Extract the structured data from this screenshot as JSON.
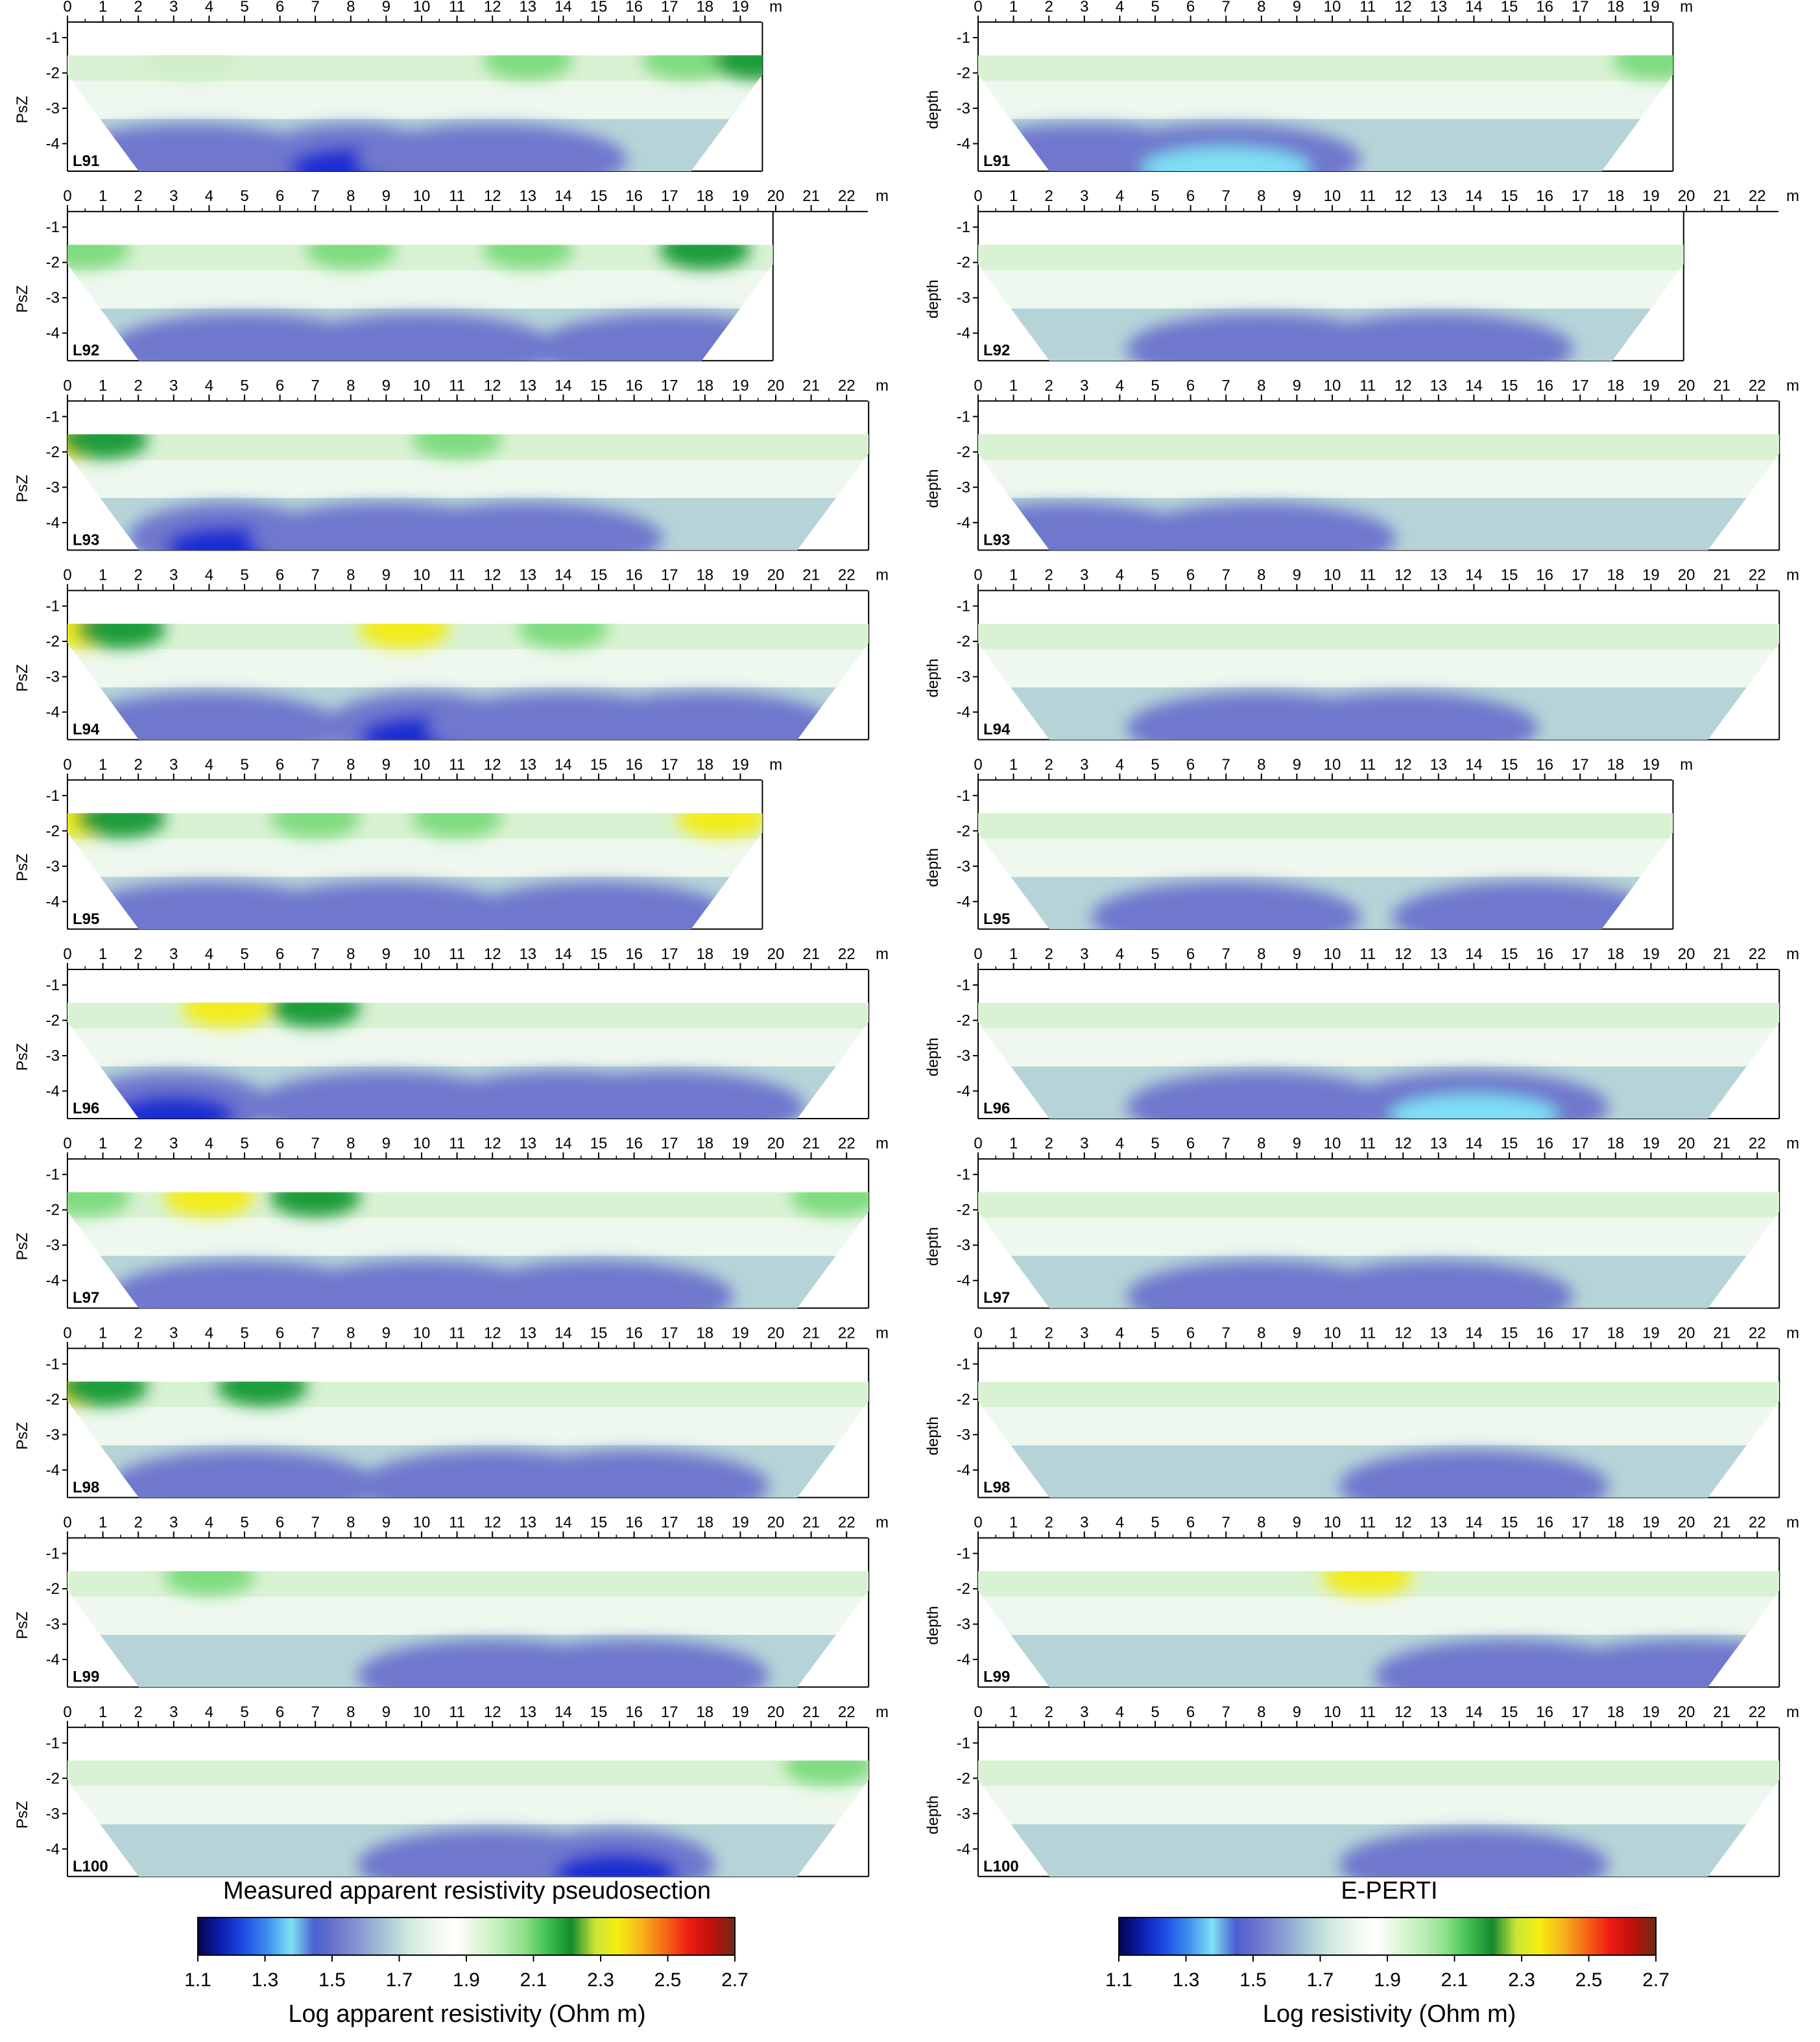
{
  "figure": {
    "unit_label": "m",
    "left_column": {
      "y_axis_label": "PsZ",
      "caption": "Measured apparent resistivity pseudosection",
      "colorbar": {
        "title": "Log apparent resistivity (Ohm m)",
        "ticks": [
          "1.1",
          "1.3",
          "1.5",
          "1.7",
          "1.9",
          "2.1",
          "2.3",
          "2.5",
          "2.7"
        ]
      }
    },
    "right_column": {
      "y_axis_label": "depth",
      "caption": "E-PERTI",
      "colorbar": {
        "title": "Log resistivity (Ohm m)",
        "ticks": [
          "1.1",
          "1.3",
          "1.5",
          "1.7",
          "1.9",
          "2.1",
          "2.3",
          "2.5",
          "2.7"
        ]
      }
    },
    "depth_ticks": [
      "-1",
      "-2",
      "-3",
      "-4"
    ],
    "colormap": [
      "#05054e",
      "#0b1fb0",
      "#1d4fe6",
      "#3f8ff0",
      "#7fe1f5",
      "#4b5fd0",
      "#6f78cd",
      "#8a9bd3",
      "#a6c6d6",
      "#cfe8df",
      "#eaf6ea",
      "#ffffff",
      "#e0f6d8",
      "#bdeeb8",
      "#8de08a",
      "#3fbf4f",
      "#138a2e",
      "#c8e43a",
      "#f6ee10",
      "#f7b31a",
      "#f66a14",
      "#ee1d12",
      "#c10f0c",
      "#6e2a12"
    ],
    "panels": [
      {
        "label": "L91",
        "xmax": 19,
        "left": {
          "top": "green",
          "deep": "blue",
          "shallow_high": [
            [
              3.5,
              "light"
            ],
            [
              13,
              "green"
            ],
            [
              17.5,
              "green"
            ],
            [
              19.5,
              "dkgreen"
            ]
          ],
          "deep_low": [
            [
              3.5,
              "mid"
            ],
            [
              8,
              "deep"
            ],
            [
              12,
              "mid"
            ]
          ]
        },
        "right": {
          "top": "light",
          "deep": "blue",
          "shallow_high": [
            [
              19.2,
              "green"
            ]
          ],
          "deep_low": [
            [
              3,
              "mid"
            ],
            [
              7,
              "cyan"
            ]
          ]
        }
      },
      {
        "label": "L92",
        "xmax": 22,
        "left_xmax": 19.3,
        "right_xmax": 19.3,
        "left": {
          "top": "green",
          "shallow_high": [
            [
              0.5,
              "green"
            ],
            [
              8,
              "green"
            ],
            [
              13,
              "green"
            ],
            [
              18,
              "dkgreen"
            ]
          ],
          "deep_low": [
            [
              5,
              "mid"
            ],
            [
              10,
              "mid"
            ],
            [
              17,
              "mid"
            ]
          ]
        },
        "right": {
          "top": "light",
          "deep_low": [
            [
              8,
              "mid"
            ],
            [
              13,
              "mid"
            ]
          ]
        }
      },
      {
        "label": "L93",
        "xmax": 22,
        "left": {
          "shallow_high": [
            [
              0.3,
              "yellow"
            ],
            [
              1,
              "dkgreen"
            ],
            [
              11,
              "green"
            ]
          ],
          "deep_low": [
            [
              4.5,
              "deep"
            ],
            [
              9,
              "mid"
            ],
            [
              13,
              "mid"
            ]
          ]
        },
        "right": {
          "deep_low": [
            [
              2.5,
              "mid"
            ],
            [
              8,
              "mid"
            ]
          ]
        }
      },
      {
        "label": "L94",
        "xmax": 22,
        "left": {
          "shallow_high": [
            [
              0.3,
              "yellow"
            ],
            [
              1.5,
              "dkgreen"
            ],
            [
              9.5,
              "yellow"
            ],
            [
              14,
              "green"
            ]
          ],
          "deep_low": [
            [
              4,
              "mid"
            ],
            [
              10,
              "deep"
            ],
            [
              14,
              "mid"
            ],
            [
              18,
              "mid"
            ]
          ]
        },
        "right": {
          "deep_low": [
            [
              8,
              "mid"
            ],
            [
              12,
              "mid"
            ]
          ]
        }
      },
      {
        "label": "L95",
        "xmax": 19,
        "left": {
          "shallow_high": [
            [
              0.3,
              "yellow"
            ],
            [
              1.5,
              "dkgreen"
            ],
            [
              7,
              "green"
            ],
            [
              11,
              "green"
            ],
            [
              18.5,
              "yellow"
            ]
          ],
          "deep_low": [
            [
              4,
              "mid"
            ],
            [
              9,
              "mid"
            ],
            [
              15,
              "mid"
            ]
          ]
        },
        "right": {
          "deep_low": [
            [
              7,
              "mid"
            ],
            [
              15.5,
              "mid"
            ]
          ]
        }
      },
      {
        "label": "L96",
        "xmax": 22,
        "left": {
          "shallow_high": [
            [
              4.5,
              "yellow"
            ],
            [
              7,
              "dkgreen"
            ]
          ],
          "deep_low": [
            [
              3,
              "deep"
            ],
            [
              9,
              "mid"
            ],
            [
              14,
              "mid"
            ],
            [
              17,
              "mid"
            ]
          ]
        },
        "right": {
          "deep_low": [
            [
              8,
              "mid"
            ],
            [
              14,
              "cyan"
            ]
          ]
        }
      },
      {
        "label": "L97",
        "xmax": 22,
        "left": {
          "shallow_high": [
            [
              4,
              "yellow"
            ],
            [
              7,
              "dkgreen"
            ],
            [
              0.5,
              "green"
            ],
            [
              21.7,
              "green"
            ]
          ],
          "deep_low": [
            [
              5,
              "mid"
            ],
            [
              10,
              "mid"
            ],
            [
              15,
              "mid"
            ]
          ]
        },
        "right": {
          "deep_low": [
            [
              8,
              "mid"
            ],
            [
              13,
              "mid"
            ]
          ]
        }
      },
      {
        "label": "L98",
        "xmax": 22,
        "left": {
          "shallow_high": [
            [
              0.3,
              "yellow"
            ],
            [
              1,
              "dkgreen"
            ],
            [
              5.5,
              "dkgreen"
            ]
          ],
          "deep_low": [
            [
              5,
              "mid"
            ],
            [
              12,
              "mid"
            ],
            [
              16,
              "mid"
            ]
          ]
        },
        "right": {
          "deep_low": [
            [
              14,
              "mid"
            ]
          ]
        }
      },
      {
        "label": "L99",
        "xmax": 22,
        "left": {
          "shallow_high": [
            [
              4,
              "green"
            ]
          ],
          "deep_low": [
            [
              12,
              "mid"
            ],
            [
              16,
              "mid"
            ]
          ]
        },
        "right": {
          "shallow_high": [
            [
              11,
              "yellow"
            ]
          ],
          "deep_low": [
            [
              15,
              "mid"
            ],
            [
              20,
              "mid"
            ]
          ]
        }
      },
      {
        "label": "L100",
        "xmax": 22,
        "left": {
          "shallow_high": [
            [
              21.5,
              "green"
            ]
          ],
          "deep_low": [
            [
              12,
              "mid"
            ],
            [
              15.5,
              "deep"
            ]
          ]
        },
        "right": {
          "deep_low": [
            [
              14,
              "mid"
            ]
          ]
        }
      }
    ]
  }
}
